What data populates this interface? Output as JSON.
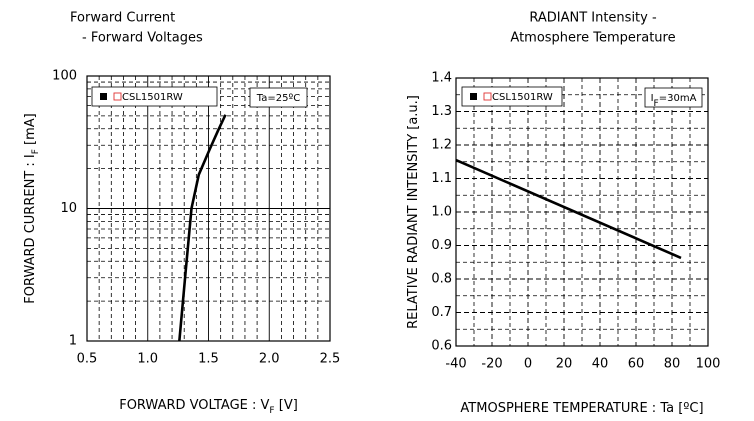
{
  "chart_data": [
    {
      "type": "line",
      "title": [
        "Forward Current",
        "- Forward Voltages"
      ],
      "xlabel": [
        "FORWARD VOLTAGE : V",
        "F",
        " [V]"
      ],
      "ylabel": [
        "FORWARD CURRENT : I",
        "F",
        " [mA]"
      ],
      "annotation": [
        "Ta=25ºC"
      ],
      "x": [
        1.26,
        1.31,
        1.36,
        1.42,
        1.51,
        1.58,
        1.64
      ],
      "series": [
        {
          "name": "CSL1501RW",
          "color": "#000000",
          "values": [
            1,
            3.2,
            10,
            18,
            28,
            39,
            51
          ]
        }
      ],
      "xlim": [
        0.5,
        2.5
      ],
      "xticks": [
        0.5,
        {
          "value": 1,
          "label": "1.0"
        },
        1.5,
        {
          "value": 2,
          "label": "2.0"
        },
        2.5
      ],
      "ylim": [
        1,
        100
      ],
      "yticks": [
        1,
        10,
        100
      ],
      "log_y": true,
      "grid": true
    },
    {
      "type": "line",
      "title": [
        "RADIANT Intensity -",
        "Atmosphere Temperature"
      ],
      "xlabel": [
        "ATMOSPHERE TEMPERATURE : Ta [ºC]"
      ],
      "ylabel": [
        "RELATIVE RADIANT INTENSITY [a.u.]"
      ],
      "annotation": [
        "I",
        "F",
        "=30mA"
      ],
      "x": [
        -40,
        85
      ],
      "series": [
        {
          "name": "CSL1501RW",
          "color": "#000000",
          "values": [
            1.155,
            0.863
          ]
        }
      ],
      "xlim": [
        -40,
        100
      ],
      "xticks": [
        -40,
        -20,
        0,
        20,
        40,
        60,
        80,
        100
      ],
      "ylim": [
        0.6,
        1.4
      ],
      "yticks": [
        0.6,
        0.7,
        0.8,
        0.9,
        {
          "value": 1,
          "label": "1.0"
        },
        1.1,
        1.2,
        1.3,
        1.4
      ],
      "log_y": false,
      "grid": true
    }
  ]
}
